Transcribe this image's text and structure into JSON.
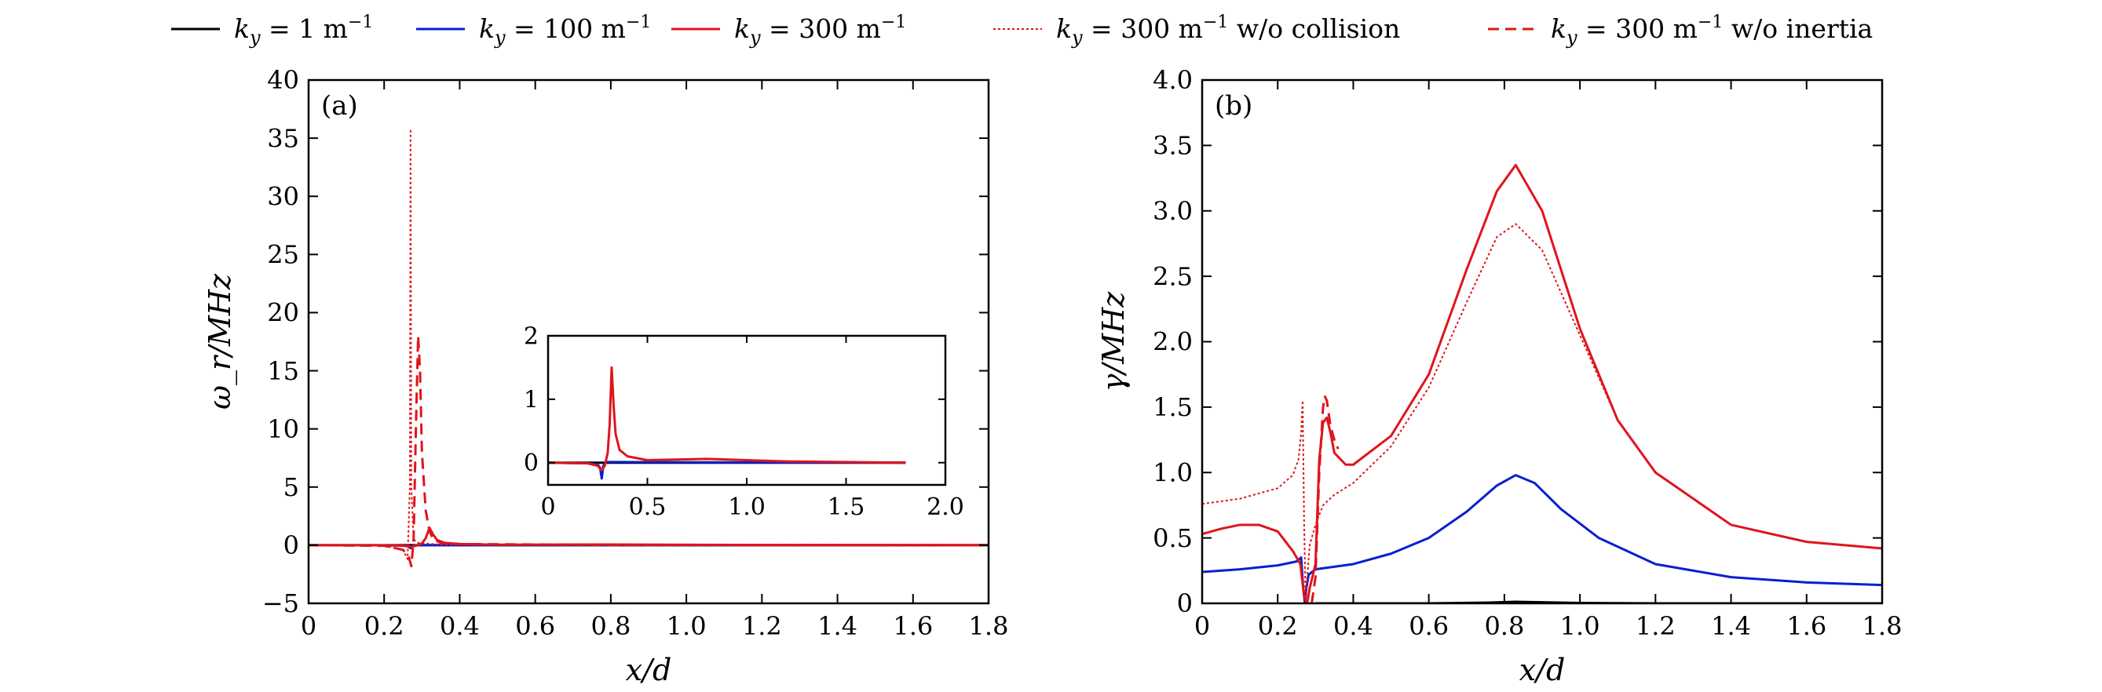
{
  "colors": {
    "black": "#000000",
    "blue": "#0a1fd0",
    "red": "#e0141c"
  },
  "legend": [
    {
      "label": "k_y = 1 m^-1",
      "color": "#000000",
      "dash": "solid"
    },
    {
      "label": "k_y = 100 m^-1",
      "color": "#0a1fd0",
      "dash": "solid"
    },
    {
      "label": "k_y = 300 m^-1",
      "color": "#e0141c",
      "dash": "solid"
    },
    {
      "label": "k_y = 300 m^-1 w/o collision",
      "color": "#e0141c",
      "dash": "dotted"
    },
    {
      "label": "k_y = 300 m^-1 w/o inertia",
      "color": "#e0141c",
      "dash": "dashed"
    }
  ],
  "chart_data": [
    {
      "panel": "(a)",
      "type": "line",
      "xlabel": "x/d",
      "ylabel": "ω_r/MHz",
      "xlim": [
        0,
        1.8
      ],
      "ylim": [
        -5,
        40
      ],
      "xticks": [
        0,
        0.2,
        0.4,
        0.6,
        0.8,
        1.0,
        1.2,
        1.4,
        1.6,
        1.8
      ],
      "xtick_labels": [
        "0",
        "0.2",
        "0.4",
        "0.6",
        "0.8",
        "1.0",
        "1.2",
        "1.4",
        "1.6",
        "1.8"
      ],
      "yticks": [
        -5,
        0,
        5,
        10,
        15,
        20,
        25,
        30,
        35,
        40
      ],
      "ytick_labels": [
        "−5",
        "0",
        "5",
        "10",
        "15",
        "20",
        "25",
        "30",
        "35",
        "40"
      ],
      "series": [
        {
          "name": "k_y = 1 m^-1",
          "color": "#000000",
          "dash": "solid",
          "x": [
            0,
            0.5,
            1.0,
            1.5,
            1.8
          ],
          "y": [
            0,
            0,
            0,
            0,
            0
          ]
        },
        {
          "name": "k_y = 100 m^-1",
          "color": "#0a1fd0",
          "dash": "solid",
          "x": [
            0,
            0.2,
            0.25,
            0.262,
            0.27,
            0.278,
            0.29,
            0.35,
            0.8,
            1.8
          ],
          "y": [
            0,
            -0.01,
            -0.03,
            -0.08,
            -0.25,
            -0.05,
            0.01,
            0.01,
            0.005,
            0
          ]
        },
        {
          "name": "k_y = 300 m^-1",
          "color": "#e0141c",
          "dash": "solid",
          "x": [
            0,
            0.2,
            0.25,
            0.27,
            0.285,
            0.3,
            0.31,
            0.32,
            0.33,
            0.34,
            0.36,
            0.4,
            0.5,
            0.8,
            1.2,
            1.8
          ],
          "y": [
            0,
            -0.01,
            -0.05,
            -0.12,
            -0.05,
            0.15,
            0.6,
            1.5,
            0.9,
            0.45,
            0.2,
            0.1,
            0.04,
            0.06,
            0.02,
            0
          ]
        },
        {
          "name": "k_y = 300 m^-1 w/o collision",
          "color": "#e0141c",
          "dash": "dotted",
          "x": [
            0,
            0.2,
            0.25,
            0.262,
            0.268,
            0.27,
            0.272,
            0.278,
            0.29,
            0.35,
            0.8,
            1.8
          ],
          "y": [
            0,
            -0.05,
            -0.4,
            -1.2,
            5,
            35.8,
            5,
            0.5,
            0.2,
            0.05,
            0.02,
            0
          ]
        },
        {
          "name": "k_y = 300 m^-1 w/o inertia",
          "color": "#e0141c",
          "dash": "dashed",
          "x": [
            0,
            0.2,
            0.25,
            0.265,
            0.272,
            0.278,
            0.284,
            0.29,
            0.295,
            0.3,
            0.31,
            0.32,
            0.33,
            0.35,
            0.4,
            0.8,
            1.8
          ],
          "y": [
            0,
            -0.05,
            -0.4,
            -1.0,
            -1.8,
            0.5,
            10,
            18,
            15,
            8,
            3,
            1.2,
            0.5,
            0.2,
            0.1,
            0.02,
            0
          ]
        }
      ],
      "inset": {
        "xlim": [
          0,
          2.0
        ],
        "ylim": [
          -0.35,
          2.0
        ],
        "xticks": [
          0,
          0.5,
          1.0,
          1.5,
          2.0
        ],
        "xtick_labels": [
          "0",
          "0.5",
          "1.0",
          "1.5",
          "2.0"
        ],
        "yticks": [
          0,
          1,
          2
        ],
        "ytick_labels": [
          "0",
          "1",
          "2"
        ],
        "series": [
          {
            "name": "k_y = 1 m^-1",
            "color": "#000000",
            "dash": "solid",
            "x": [
              0,
              0.5,
              1.0,
              1.5,
              1.8
            ],
            "y": [
              0,
              0,
              0,
              0,
              0
            ]
          },
          {
            "name": "k_y = 100 m^-1",
            "color": "#0a1fd0",
            "dash": "solid",
            "x": [
              0,
              0.2,
              0.25,
              0.262,
              0.27,
              0.278,
              0.29,
              0.35,
              0.8,
              1.8
            ],
            "y": [
              0,
              -0.01,
              -0.03,
              -0.08,
              -0.25,
              -0.05,
              0.01,
              0.01,
              0.005,
              0
            ]
          },
          {
            "name": "k_y = 300 m^-1",
            "color": "#e0141c",
            "dash": "solid",
            "x": [
              0,
              0.2,
              0.25,
              0.27,
              0.285,
              0.3,
              0.31,
              0.32,
              0.33,
              0.34,
              0.36,
              0.4,
              0.5,
              0.8,
              1.2,
              1.8
            ],
            "y": [
              0,
              -0.01,
              -0.05,
              -0.12,
              -0.05,
              0.15,
              0.6,
              1.5,
              0.9,
              0.45,
              0.2,
              0.1,
              0.04,
              0.06,
              0.02,
              0
            ]
          }
        ]
      }
    },
    {
      "panel": "(b)",
      "type": "line",
      "xlabel": "x/d",
      "ylabel": "γ/MHz",
      "xlim": [
        0,
        1.8
      ],
      "ylim": [
        0,
        4.0
      ],
      "xticks": [
        0,
        0.2,
        0.4,
        0.6,
        0.8,
        1.0,
        1.2,
        1.4,
        1.6,
        1.8
      ],
      "xtick_labels": [
        "0",
        "0.2",
        "0.4",
        "0.6",
        "0.8",
        "1.0",
        "1.2",
        "1.4",
        "1.6",
        "1.8"
      ],
      "yticks": [
        0,
        0.5,
        1.0,
        1.5,
        2.0,
        2.5,
        3.0,
        3.5,
        4.0
      ],
      "ytick_labels": [
        "0",
        "0.5",
        "1.0",
        "1.5",
        "2.0",
        "2.5",
        "3.0",
        "3.5",
        "4.0"
      ],
      "series": [
        {
          "name": "k_y = 1 m^-1",
          "color": "#000000",
          "dash": "solid",
          "x": [
            0.3,
            0.6,
            0.75,
            0.83,
            0.9,
            1.0,
            1.2,
            1.5,
            1.8
          ],
          "y": [
            0,
            0,
            0.005,
            0.012,
            0.008,
            0.003,
            0,
            0,
            0
          ]
        },
        {
          "name": "k_y = 100 m^-1",
          "color": "#0a1fd0",
          "dash": "solid",
          "x": [
            0,
            0.1,
            0.2,
            0.25,
            0.262,
            0.268,
            0.272,
            0.276,
            0.282,
            0.3,
            0.4,
            0.5,
            0.6,
            0.7,
            0.78,
            0.83,
            0.88,
            0.95,
            1.05,
            1.2,
            1.4,
            1.6,
            1.8
          ],
          "y": [
            0.24,
            0.26,
            0.29,
            0.32,
            0.35,
            0.1,
            0.0,
            0.12,
            0.22,
            0.26,
            0.3,
            0.38,
            0.5,
            0.7,
            0.9,
            0.98,
            0.92,
            0.72,
            0.5,
            0.3,
            0.2,
            0.16,
            0.14
          ]
        },
        {
          "name": "k_y = 300 m^-1",
          "color": "#e0141c",
          "dash": "solid",
          "x": [
            0,
            0.05,
            0.1,
            0.15,
            0.2,
            0.24,
            0.26,
            0.27,
            0.278,
            0.285,
            0.3,
            0.31,
            0.32,
            0.33,
            0.34,
            0.35,
            0.38,
            0.4,
            0.5,
            0.6,
            0.7,
            0.78,
            0.83,
            0.9,
            1.0,
            1.1,
            1.2,
            1.4,
            1.6,
            1.8
          ],
          "y": [
            0.53,
            0.57,
            0.6,
            0.6,
            0.55,
            0.4,
            0.3,
            0.05,
            0.0,
            0.12,
            0.3,
            1.1,
            1.38,
            1.42,
            1.3,
            1.15,
            1.06,
            1.06,
            1.28,
            1.75,
            2.55,
            3.15,
            3.35,
            3.0,
            2.1,
            1.4,
            1.0,
            0.6,
            0.47,
            0.42
          ]
        },
        {
          "name": "k_y = 300 m^-1 w/o collision",
          "color": "#e0141c",
          "dash": "dotted",
          "x": [
            0,
            0.1,
            0.2,
            0.24,
            0.255,
            0.262,
            0.266,
            0.27,
            0.274,
            0.278,
            0.285,
            0.3,
            0.32,
            0.35,
            0.4,
            0.5,
            0.6,
            0.7,
            0.78,
            0.83,
            0.9,
            1.0,
            1.1,
            1.2,
            1.4,
            1.6,
            1.8
          ],
          "y": [
            0.76,
            0.8,
            0.88,
            0.98,
            1.1,
            1.3,
            1.55,
            0.6,
            0.0,
            0.2,
            0.45,
            0.6,
            0.75,
            0.83,
            0.92,
            1.2,
            1.65,
            2.3,
            2.8,
            2.9,
            2.7,
            2.05,
            1.4,
            1.0,
            0.6,
            0.47,
            0.42
          ]
        },
        {
          "name": "k_y = 300 m^-1 w/o inertia",
          "color": "#e0141c",
          "dash": "dashed",
          "x": [
            0.29,
            0.3,
            0.31,
            0.32,
            0.325,
            0.33,
            0.335,
            0.34,
            0.35,
            0.36
          ],
          "y": [
            0.0,
            0.2,
            1.0,
            1.5,
            1.58,
            1.55,
            1.45,
            1.35,
            1.25,
            1.18
          ]
        }
      ]
    }
  ]
}
